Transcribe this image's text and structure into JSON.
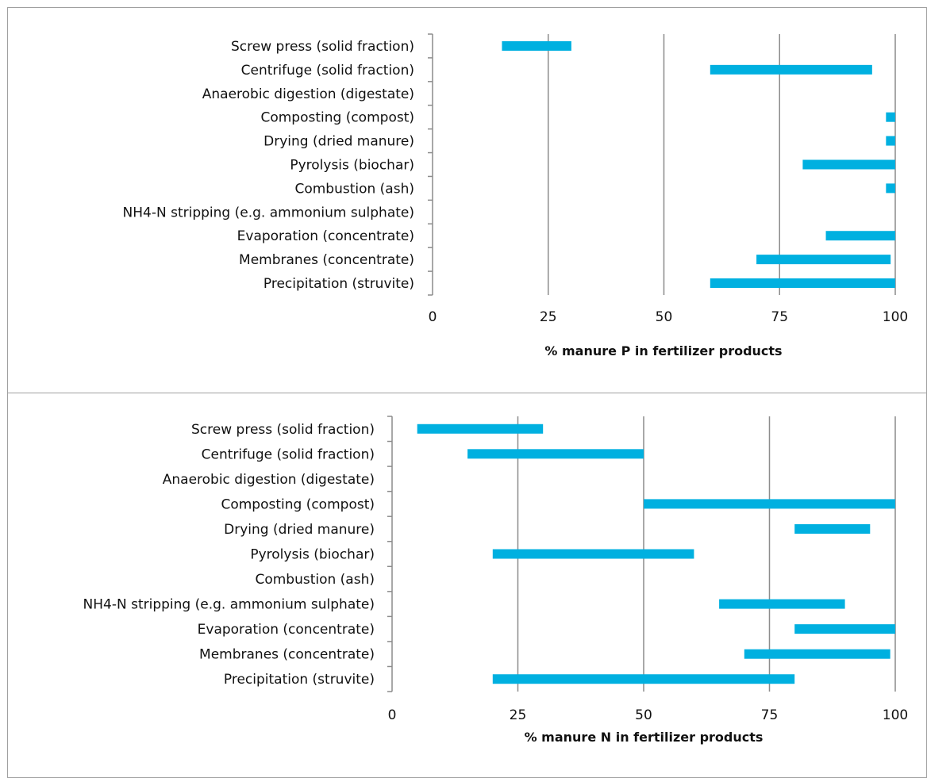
{
  "chart_data": [
    {
      "type": "bar",
      "categories": [
        "Screw press (solid fraction)",
        "Centrifuge (solid fraction)",
        "Anaerobic digestion (digestate)",
        "Composting (compost)",
        "Drying (dried manure)",
        "Pyrolysis (biochar)",
        "Combustion (ash)",
        "NH4-N stripping (e.g. ammonium sulphate)",
        "Evaporation (concentrate)",
        "Membranes (concentrate)",
        "Precipitation (struvite)"
      ],
      "ranges": [
        [
          15,
          30
        ],
        [
          60,
          95
        ],
        null,
        [
          98,
          100
        ],
        [
          98,
          100
        ],
        [
          80,
          100
        ],
        [
          98,
          100
        ],
        null,
        [
          85,
          100
        ],
        [
          70,
          99
        ],
        [
          60,
          100
        ]
      ],
      "xticks": [
        "0",
        "25",
        "50",
        "75",
        "100"
      ],
      "xlim": [
        0,
        100
      ],
      "xlabel": "% manure P in fertilizer products",
      "bar_color": "#00b0e0",
      "grid": "vertical"
    },
    {
      "type": "bar",
      "categories": [
        "Screw press (solid fraction)",
        "Centrifuge (solid fraction)",
        "Anaerobic digestion (digestate)",
        "Composting (compost)",
        "Drying (dried manure)",
        "Pyrolysis (biochar)",
        "Combustion (ash)",
        "NH4-N stripping (e.g. ammonium sulphate)",
        "Evaporation (concentrate)",
        "Membranes (concentrate)",
        "Precipitation (struvite)"
      ],
      "ranges": [
        [
          5,
          30
        ],
        [
          15,
          50
        ],
        null,
        [
          50,
          100
        ],
        [
          80,
          95
        ],
        [
          20,
          60
        ],
        null,
        [
          65,
          90
        ],
        [
          80,
          100
        ],
        [
          70,
          99
        ],
        [
          20,
          80
        ]
      ],
      "xticks": [
        "0",
        "25",
        "50",
        "75",
        "100"
      ],
      "xlim": [
        0,
        100
      ],
      "xlabel": "% manure N in fertilizer products",
      "bar_color": "#00b0e0",
      "grid": "vertical"
    }
  ]
}
